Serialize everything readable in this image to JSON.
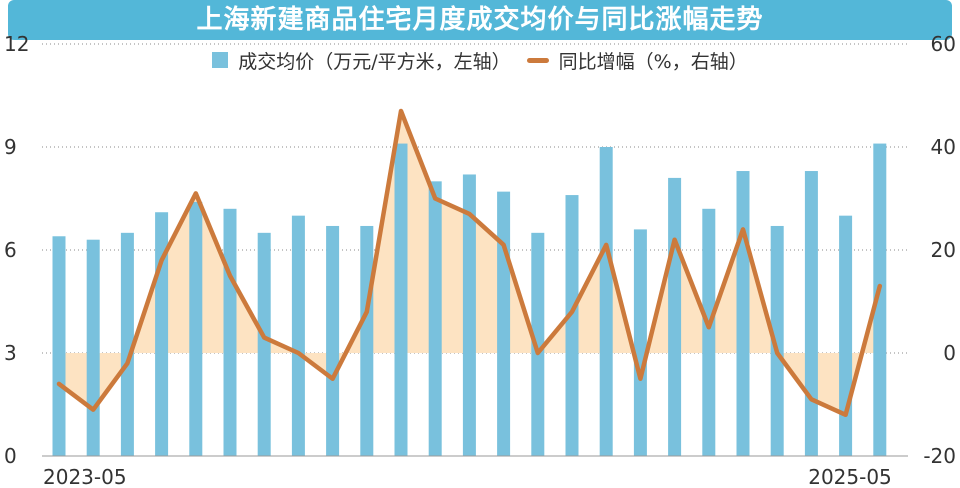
{
  "title": "上海新建商品住宅月度成交均价与同比涨幅走势",
  "colors": {
    "title_bg": "#53b7d8",
    "bar": "#79c1dd",
    "line": "#cc7a3c",
    "fill": "#fde3c2",
    "grid": "#8a8a8a",
    "text": "#333333"
  },
  "legend": {
    "bar_label": "成交均价（万元/平方米，左轴）",
    "line_label": "同比增幅（%，右轴）"
  },
  "chart_data": {
    "type": "bar+line",
    "title": "上海新建商品住宅月度成交均价与同比涨幅走势",
    "x_labels": [
      "2023-05",
      "2025-05"
    ],
    "y_left": {
      "range": [
        0,
        12
      ],
      "ticks": [
        "0",
        "3",
        "6",
        "9",
        "12"
      ]
    },
    "y_right": {
      "range": [
        -20,
        60
      ],
      "ticks": [
        "-20",
        "0",
        "20",
        "40",
        "60"
      ]
    },
    "grid": true,
    "legend_position": "top",
    "series": [
      {
        "name": "成交均价（万元/平方米，左轴）",
        "type": "bar",
        "axis": "left",
        "values": [
          6.4,
          6.3,
          6.5,
          7.1,
          7.4,
          7.2,
          6.5,
          7.0,
          6.7,
          6.7,
          9.1,
          8.0,
          8.2,
          7.7,
          6.5,
          7.6,
          9.0,
          6.6,
          8.1,
          7.2,
          8.3,
          6.7,
          8.3,
          7.0,
          9.1
        ]
      },
      {
        "name": "同比增幅（%，右轴）",
        "type": "line",
        "axis": "right",
        "values": [
          -6,
          -11,
          -2,
          18,
          31,
          15,
          3,
          0,
          -5,
          8,
          47,
          30,
          27,
          21,
          0,
          8,
          21,
          -5,
          22,
          5,
          24,
          0,
          -9,
          -12,
          13
        ]
      }
    ]
  }
}
